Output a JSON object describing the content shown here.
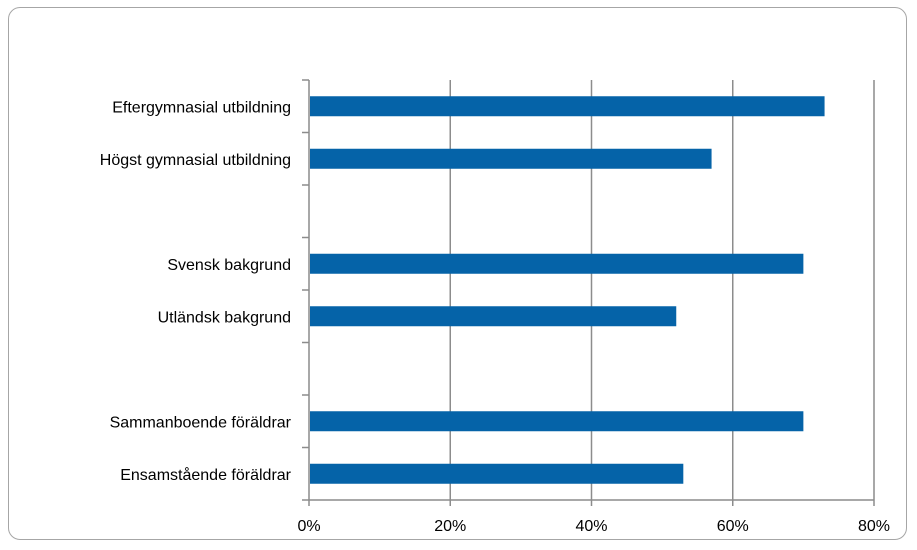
{
  "chart_data": {
    "type": "bar",
    "orientation": "horizontal",
    "title": "",
    "xlabel": "",
    "ylabel": "",
    "xlim": [
      0,
      0.8
    ],
    "x_ticks": [
      0,
      0.2,
      0.4,
      0.6,
      0.8
    ],
    "x_tick_labels": [
      "0%",
      "20%",
      "40%",
      "60%",
      "80%"
    ],
    "grid": "vertical",
    "legend": "none",
    "bar_color": "#0563a8",
    "categories": [
      "Eftergymnasial utbildning",
      "Högst gymnasial utbildning",
      "",
      "Svensk bakgrund",
      "Utländsk bakgrund",
      "",
      "Sammanboende föräldrar",
      "Ensamstående föräldrar"
    ],
    "values": [
      0.73,
      0.57,
      null,
      0.7,
      0.52,
      null,
      0.7,
      0.53
    ]
  }
}
